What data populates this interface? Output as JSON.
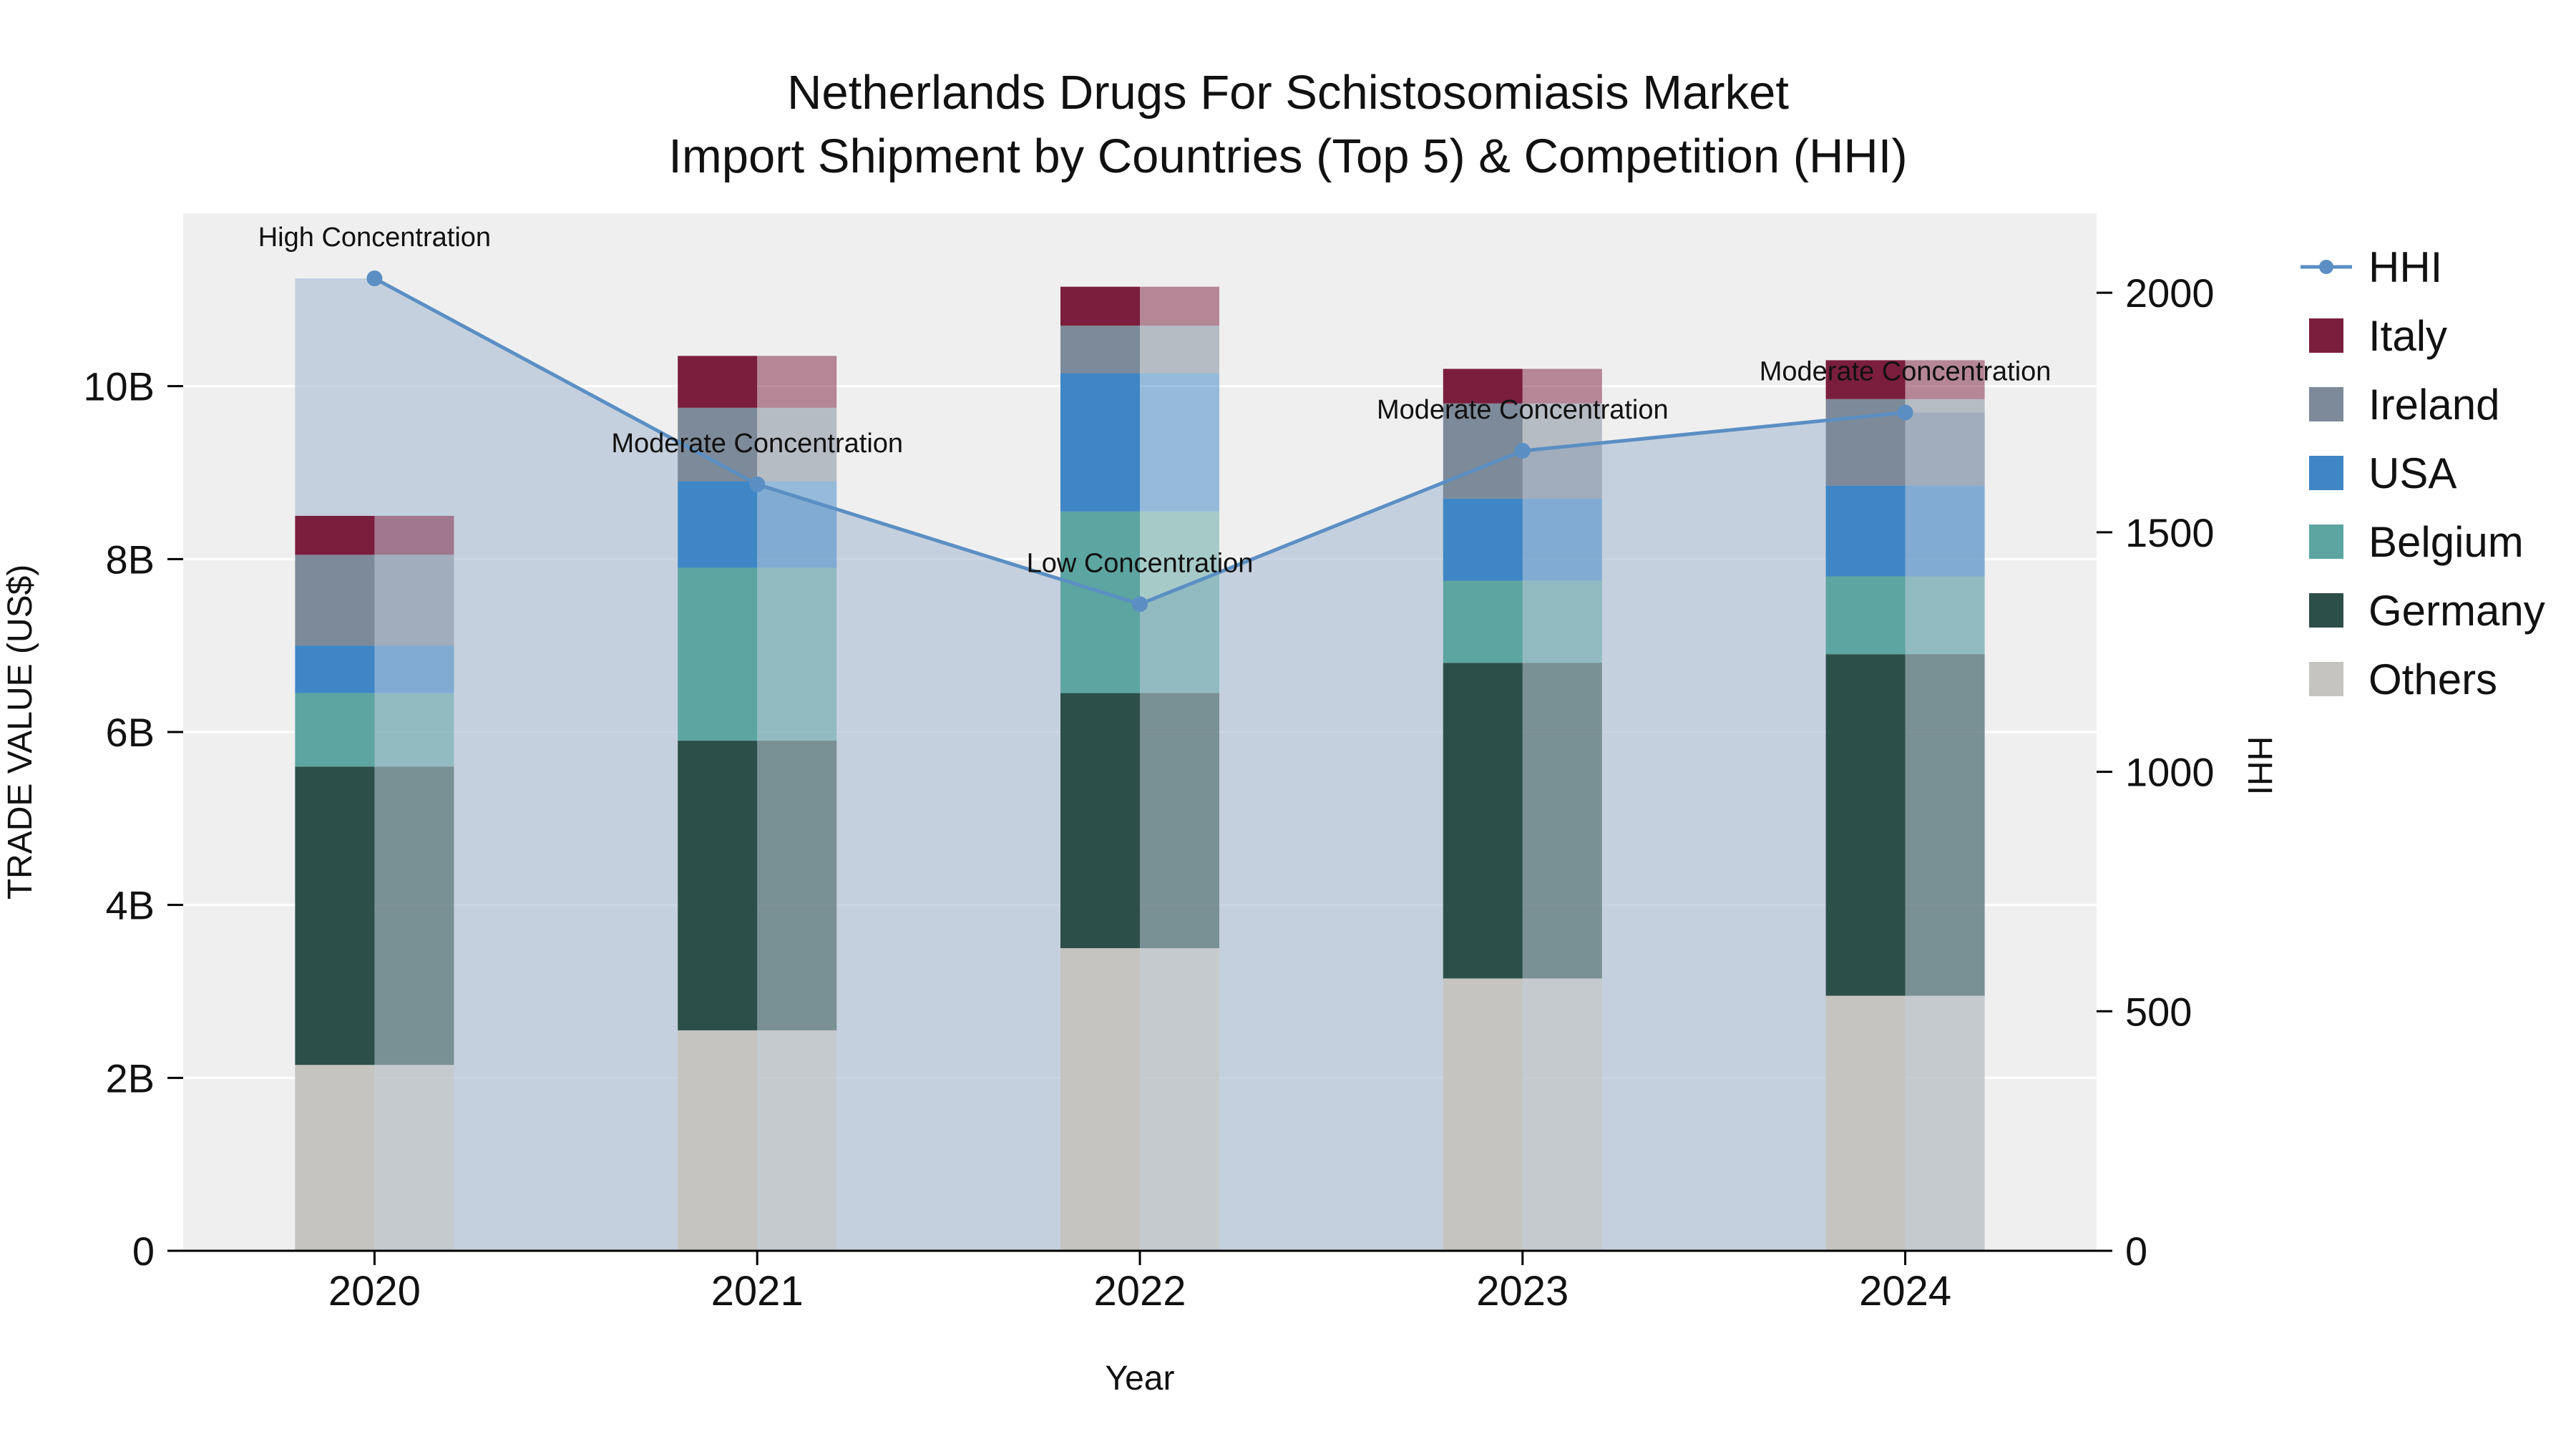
{
  "title": {
    "line1": "Netherlands Drugs For Schistosomiasis Market",
    "line2": "Import Shipment by Countries (Top 5) & Competition (HHI)"
  },
  "axes": {
    "x_title": "Year",
    "y_left_title": "TRADE VALUE (US$)",
    "y_right_title": "HHI",
    "y_left_ticks": [
      "0",
      "2B",
      "4B",
      "6B",
      "8B",
      "10B"
    ],
    "y_left_tick_values": [
      0,
      2,
      4,
      6,
      8,
      10
    ],
    "y_right_ticks": [
      "0",
      "500",
      "1000",
      "1500",
      "2000"
    ],
    "y_right_tick_values": [
      0,
      500,
      1000,
      1500,
      2000
    ]
  },
  "chart_data": {
    "type": "bar",
    "subtype": "stacked-bar-with-line",
    "title": "Netherlands Drugs For Schistosomiasis Market Import Shipment by Countries (Top 5) & Competition (HHI)",
    "xlabel": "Year",
    "ylabel_left": "TRADE VALUE (US$)",
    "ylabel_right": "HHI",
    "categories": [
      "2020",
      "2021",
      "2022",
      "2023",
      "2024"
    ],
    "units": "billions of US$",
    "ylim_left": [
      0,
      12
    ],
    "ylim_right": [
      0,
      2166
    ],
    "grid": true,
    "legend_position": "right",
    "bar_stack_order": "bottom to top",
    "bar_series": [
      {
        "name": "Others",
        "color": "#c6c4c0",
        "values": [
          2.15,
          2.55,
          3.5,
          3.15,
          2.95
        ]
      },
      {
        "name": "Germany",
        "color": "#2d4f49",
        "values": [
          3.45,
          3.35,
          2.95,
          3.65,
          3.95
        ]
      },
      {
        "name": "Belgium",
        "color": "#5da5a1",
        "values": [
          0.85,
          2.0,
          2.1,
          0.95,
          0.9
        ]
      },
      {
        "name": "USA",
        "color": "#3e86c5",
        "values": [
          0.55,
          1.0,
          1.6,
          0.95,
          1.05
        ]
      },
      {
        "name": "Ireland",
        "color": "#7d8a99",
        "values": [
          1.05,
          0.85,
          0.55,
          1.1,
          1.0
        ]
      },
      {
        "name": "Italy",
        "color": "#7b1e3d",
        "values": [
          0.45,
          0.6,
          0.45,
          0.4,
          0.45
        ]
      }
    ],
    "line_series": {
      "name": "HHI",
      "color": "#5b8fc4",
      "axis": "right",
      "values": [
        2030,
        1600,
        1350,
        1670,
        1750
      ]
    },
    "area_fill_color": "#aebfd4",
    "annotations": [
      {
        "x": "2020",
        "text": "High Concentration"
      },
      {
        "x": "2021",
        "text": "Moderate Concentration"
      },
      {
        "x": "2022",
        "text": "Low Concentration"
      },
      {
        "x": "2023",
        "text": "Moderate Concentration"
      },
      {
        "x": "2024",
        "text": "Moderate Concentration"
      }
    ]
  },
  "legend": {
    "items": [
      {
        "label": "HHI",
        "type": "line",
        "color": "#5b8fc4"
      },
      {
        "label": "Italy",
        "type": "square",
        "color": "#7b1e3d"
      },
      {
        "label": "Ireland",
        "type": "square",
        "color": "#7d8a99"
      },
      {
        "label": "USA",
        "type": "square",
        "color": "#3e86c5"
      },
      {
        "label": "Belgium",
        "type": "square",
        "color": "#5da5a1"
      },
      {
        "label": "Germany",
        "type": "square",
        "color": "#2d4f49"
      },
      {
        "label": "Others",
        "type": "square",
        "color": "#c6c4c0"
      }
    ]
  },
  "style": {
    "plot_bg": "#efefef",
    "grid_color": "#ffffff",
    "axis_color": "#000000"
  }
}
